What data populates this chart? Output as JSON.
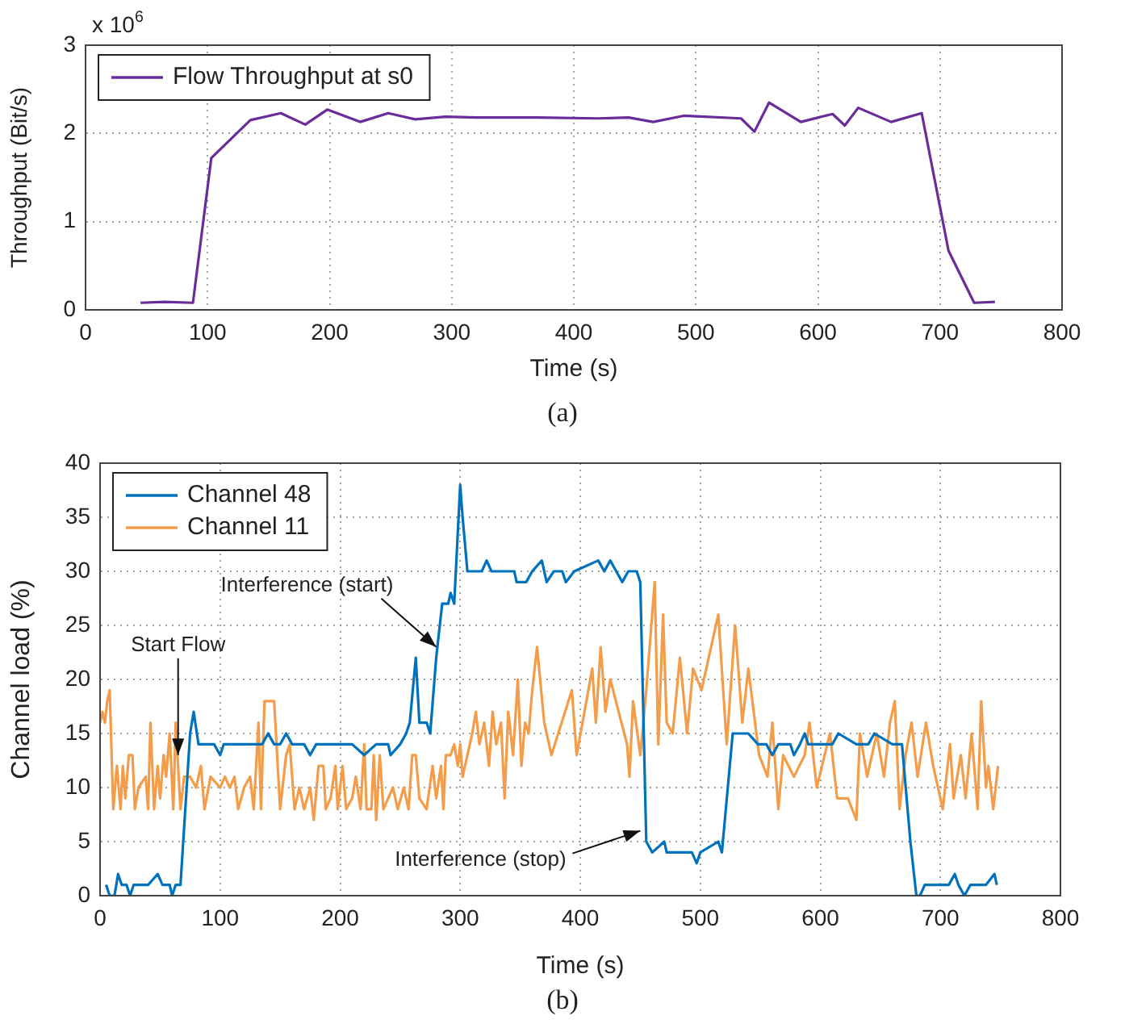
{
  "chart_data": [
    {
      "type": "line",
      "xlabel": "Time (s)",
      "ylabel": "Throughput (Bit/s)",
      "annotations": [
        "x 10$^{6}$",
        "(a)"
      ],
      "xlim": [
        0,
        800
      ],
      "xticks": [
        0,
        100,
        200,
        300,
        400,
        500,
        600,
        700,
        800
      ],
      "ylim": [
        0,
        3
      ],
      "yticks": [
        0,
        1,
        2,
        3
      ],
      "grid": true,
      "legend": "top left",
      "marker": "none",
      "line_style": "solid",
      "x": [
        45,
        65,
        88,
        103,
        135,
        160,
        180,
        198,
        225,
        248,
        270,
        295,
        320,
        370,
        420,
        445,
        465,
        490,
        537,
        548,
        560,
        586,
        612,
        622,
        633,
        660,
        685,
        707,
        728,
        745
      ],
      "series": [
        {
          "name": "Flow Throughput at s0",
          "color": "#6a2c9a",
          "values": [
            0.08,
            0.09,
            0.08,
            1.72,
            2.15,
            2.23,
            2.1,
            2.27,
            2.13,
            2.23,
            2.16,
            2.19,
            2.18,
            2.18,
            2.17,
            2.18,
            2.13,
            2.2,
            2.17,
            2.02,
            2.35,
            2.13,
            2.22,
            2.09,
            2.29,
            2.13,
            2.23,
            0.67,
            0.08,
            0.09
          ]
        }
      ]
    },
    {
      "type": "line",
      "xlabel": "Time (s)",
      "ylabel": "Channel load (%)",
      "annotations": [
        {
          "text": "Start Flow",
          "x": 65,
          "y": 13
        },
        {
          "text": "Interference (start)",
          "x": 280,
          "y": 23
        },
        {
          "text": "Interference (stop)",
          "x": 450,
          "y": 6
        },
        "(b)"
      ],
      "xlim": [
        0,
        800
      ],
      "xticks": [
        0,
        100,
        200,
        300,
        400,
        500,
        600,
        700,
        800
      ],
      "ylim": [
        0,
        40
      ],
      "yticks": [
        0,
        5,
        10,
        15,
        20,
        25,
        30,
        35,
        40
      ],
      "grid": true,
      "legend": "top left",
      "marker": "none",
      "line_style": "solid",
      "series": [
        {
          "name": "Channel 48",
          "color": "#0072bd",
          "x": [
            5,
            8,
            12,
            15,
            18,
            22,
            25,
            28,
            40,
            48,
            52,
            58,
            60,
            63,
            67,
            75,
            78,
            82,
            95,
            100,
            103,
            135,
            140,
            145,
            150,
            155,
            160,
            170,
            175,
            180,
            210,
            220,
            230,
            240,
            242,
            250,
            255,
            258,
            263,
            266,
            272,
            275,
            280,
            285,
            290,
            292,
            295,
            300,
            302,
            306,
            318,
            322,
            326,
            345,
            347,
            355,
            360,
            368,
            372,
            378,
            385,
            388,
            395,
            415,
            420,
            425,
            430,
            435,
            440,
            447,
            450,
            455,
            460,
            470,
            472,
            493,
            497,
            500,
            515,
            518,
            527,
            540,
            548,
            555,
            560,
            565,
            575,
            578,
            583,
            587,
            590,
            610,
            615,
            630,
            640,
            645,
            660,
            668,
            675,
            680,
            683,
            687,
            698,
            707,
            712,
            715,
            720,
            725,
            730,
            738,
            745,
            747
          ],
          "values": [
            1,
            0,
            0,
            2,
            1,
            1,
            0,
            1,
            1,
            2,
            1,
            1,
            0,
            1,
            1,
            15,
            17,
            14,
            14,
            13,
            14,
            14,
            15,
            14,
            14,
            15,
            14,
            14,
            13,
            14,
            14,
            13,
            14,
            14,
            13,
            14,
            15,
            16,
            22,
            16,
            16,
            15,
            22,
            27,
            27,
            28,
            27,
            38,
            35,
            30,
            30,
            31,
            30,
            30,
            29,
            29,
            30,
            31,
            29,
            30,
            30,
            29,
            30,
            31,
            30,
            31,
            30,
            29,
            30,
            30,
            29,
            5,
            4,
            5,
            4,
            4,
            3,
            4,
            5,
            4,
            15,
            15,
            14,
            14,
            13,
            14,
            14,
            13,
            14,
            15,
            14,
            14,
            15,
            14,
            14,
            15,
            14,
            14,
            5,
            0,
            0,
            1,
            1,
            1,
            2,
            1,
            0,
            1,
            1,
            1,
            2,
            1
          ]
        },
        {
          "name": "Channel 11",
          "color": "#f39c4a",
          "x": [
            0,
            2,
            4,
            6,
            8,
            11,
            14,
            17,
            19,
            21,
            24,
            27,
            29,
            32,
            38,
            40,
            42,
            45,
            48,
            50,
            53,
            55,
            58,
            61,
            63,
            67,
            70,
            75,
            80,
            84,
            87,
            92,
            100,
            104,
            108,
            112,
            115,
            120,
            125,
            128,
            132,
            134,
            137,
            145,
            150,
            155,
            158,
            162,
            166,
            170,
            175,
            178,
            182,
            186,
            188,
            192,
            196,
            198,
            202,
            205,
            210,
            213,
            217,
            220,
            222,
            226,
            228,
            230,
            233,
            236,
            240,
            244,
            248,
            253,
            257,
            260,
            263,
            266,
            272,
            277,
            280,
            284,
            286,
            288,
            292,
            295,
            298,
            300,
            302,
            306,
            310,
            313,
            316,
            320,
            324,
            327,
            330,
            334,
            337,
            340,
            344,
            348,
            351,
            354,
            357,
            360,
            364,
            370,
            376,
            393,
            397,
            410,
            413,
            417,
            421,
            425,
            439,
            441,
            444,
            450,
            455,
            462,
            465,
            469,
            472,
            477,
            483,
            489,
            494,
            501,
            515,
            522,
            529,
            535,
            540,
            549,
            556,
            560,
            565,
            569,
            578,
            587,
            591,
            597,
            608,
            614,
            623,
            630,
            633,
            639,
            647,
            653,
            658,
            662,
            666,
            671,
            676,
            681,
            688,
            694,
            702,
            708,
            711,
            717,
            721,
            726,
            731,
            734,
            738,
            740,
            744,
            748
          ],
          "values": [
            16,
            17,
            16,
            18,
            19,
            8,
            12,
            8,
            12,
            9,
            13,
            13,
            8,
            10,
            11,
            8,
            16,
            8,
            12,
            9,
            13,
            11,
            15,
            8,
            16,
            8,
            11,
            11,
            10,
            12,
            8,
            11,
            10,
            11,
            10,
            11,
            8,
            10,
            11,
            8,
            16,
            8,
            18,
            18,
            8,
            13,
            14,
            8,
            10,
            8,
            10,
            7,
            12,
            12,
            8,
            9,
            12,
            8,
            12,
            8,
            9,
            11,
            8,
            14,
            8,
            8,
            13,
            7,
            13,
            8,
            9,
            10,
            8,
            10,
            8,
            13,
            13,
            9,
            8,
            12,
            9,
            12,
            8,
            13,
            13,
            14,
            12,
            14,
            11,
            13,
            15,
            17,
            14,
            16,
            12,
            17,
            14,
            16,
            9,
            17,
            13,
            20,
            12,
            16,
            15,
            19,
            23,
            16,
            13,
            19,
            13,
            21,
            16,
            23,
            17,
            20,
            14,
            11,
            18,
            13,
            19,
            29,
            14,
            26,
            16,
            15,
            22,
            15,
            21,
            19,
            26,
            14,
            25,
            16,
            21,
            13,
            11,
            16,
            8,
            13,
            11,
            13,
            16,
            10,
            15,
            9,
            9,
            7,
            15,
            11,
            15,
            11,
            16,
            18,
            8,
            13,
            16,
            11,
            16,
            12,
            8,
            14,
            9,
            13,
            9,
            15,
            8,
            18,
            10,
            12,
            8,
            12
          ]
        }
      ]
    }
  ]
}
